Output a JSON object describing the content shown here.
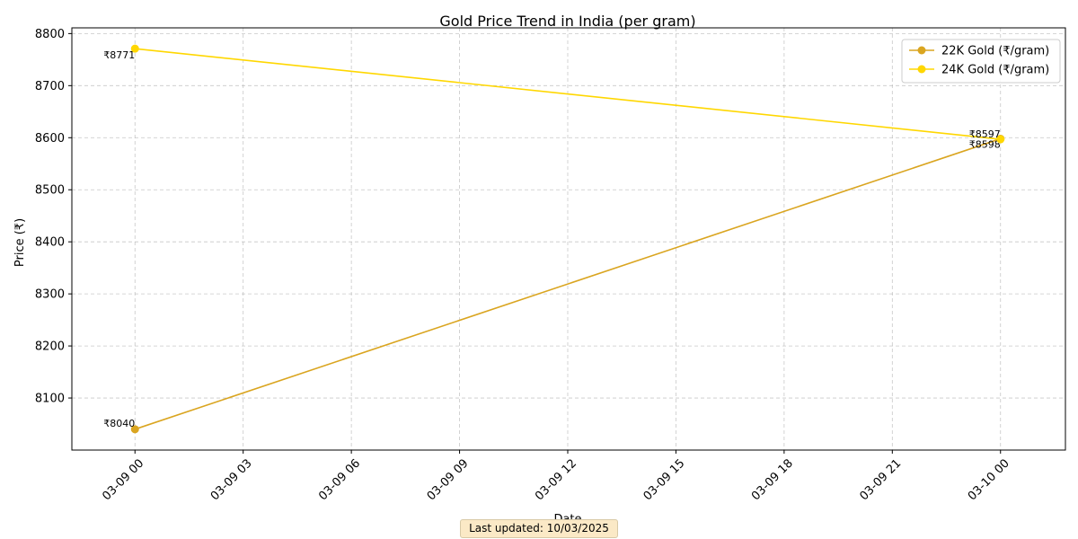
{
  "chart_data": {
    "type": "line",
    "title": "Gold Price Trend in India (per gram)",
    "xlabel": "Date",
    "ylabel": "Price (₹)",
    "x_ticks": [
      "03-09 00",
      "03-09 03",
      "03-09 06",
      "03-09 09",
      "03-09 12",
      "03-09 15",
      "03-09 18",
      "03-09 21",
      "03-10 00"
    ],
    "y_ticks": [
      8100,
      8200,
      8300,
      8400,
      8500,
      8600,
      8700,
      8800
    ],
    "xlim_hours": [
      -1.75,
      25.8
    ],
    "ylim": [
      8000,
      8811
    ],
    "grid": true,
    "grid_style": "dashed",
    "legend_position": "top-right",
    "series": [
      {
        "name": "22K Gold (₹/gram)",
        "color": "#DAA520",
        "x": [
          "03-09 00",
          "03-10 00"
        ],
        "values": [
          8040,
          8598
        ],
        "labels": [
          "₹8040",
          "₹8598"
        ]
      },
      {
        "name": "24K Gold (₹/gram)",
        "color": "#FFD700",
        "x": [
          "03-09 00",
          "03-10 00"
        ],
        "values": [
          8771,
          8597
        ],
        "labels": [
          "₹8771",
          "₹8597"
        ]
      }
    ]
  },
  "footer": {
    "note": "Last updated: 10/03/2025"
  }
}
